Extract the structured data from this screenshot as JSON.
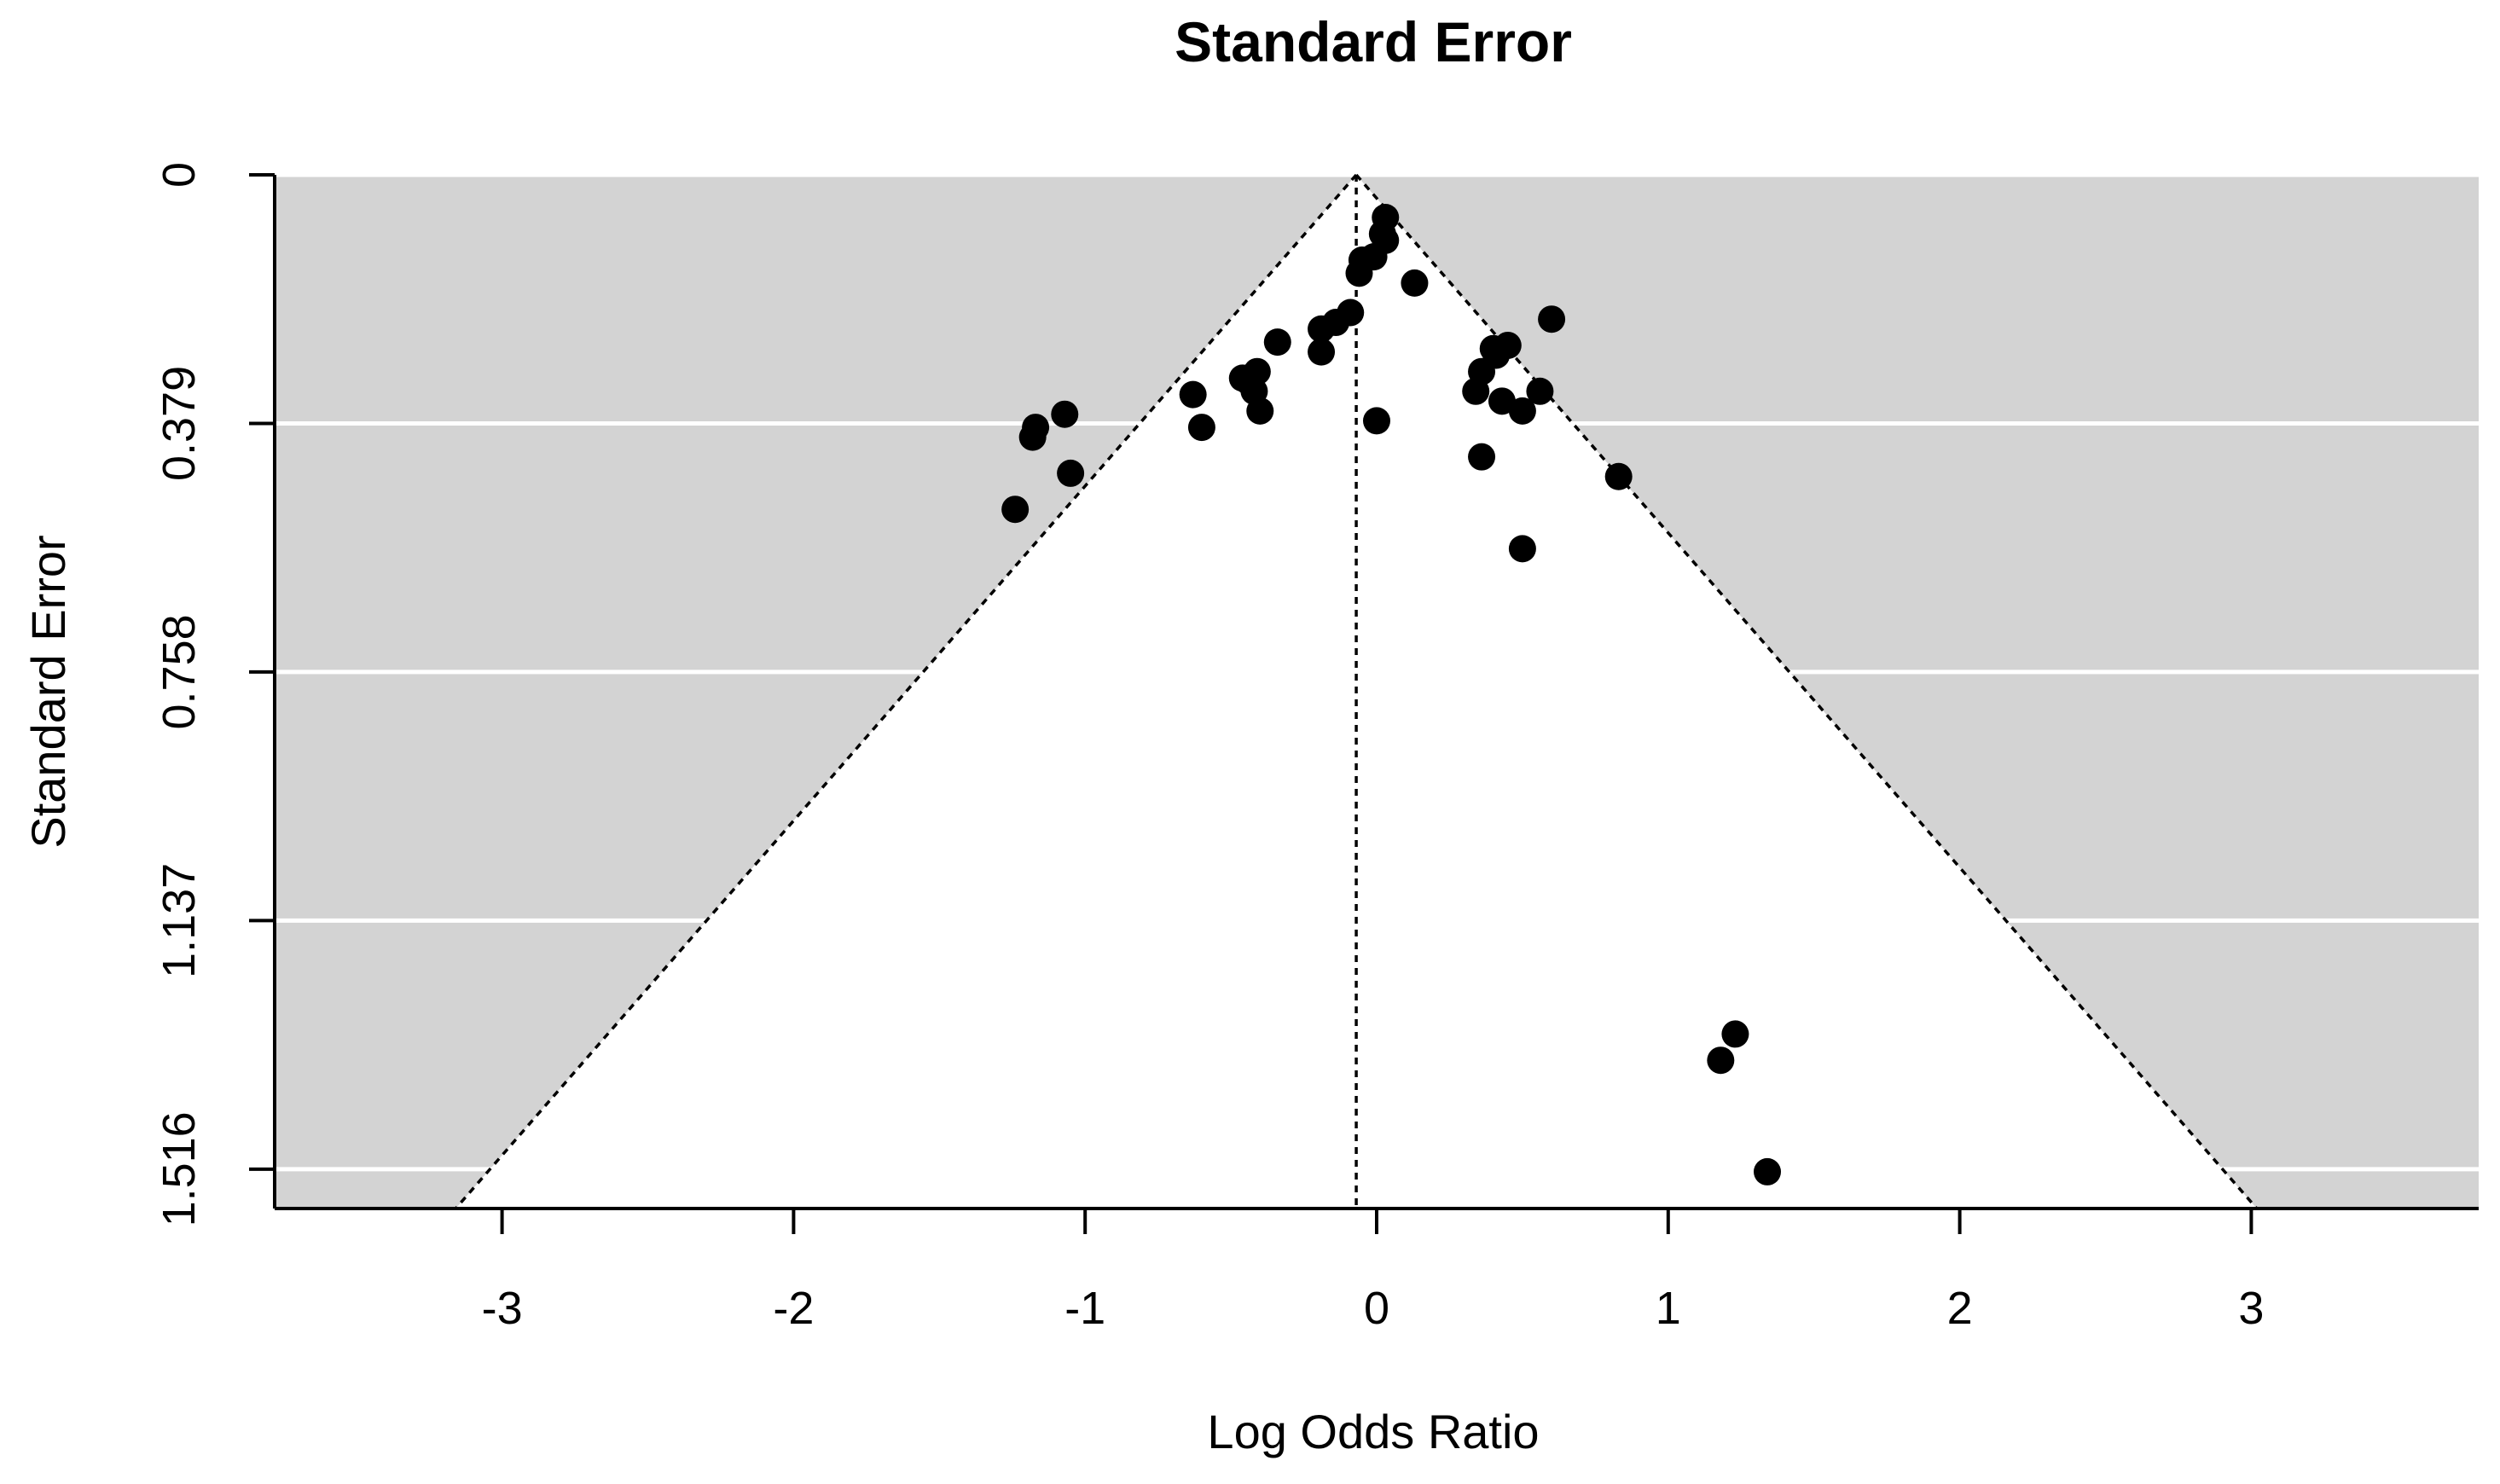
{
  "chart_data": {
    "type": "scatter",
    "title": "Standard Error",
    "xlabel": "Log Odds Ratio",
    "ylabel": "Standard Error",
    "xlim": [
      -3.78,
      3.78
    ],
    "ylim": [
      1.576,
      0
    ],
    "y_reversed": true,
    "x_ticks": [
      "-3",
      "-2",
      "-1",
      "0",
      "1",
      "2",
      "3"
    ],
    "y_ticks": [
      "0",
      "0.379",
      "0.758",
      "1.137",
      "1.516"
    ],
    "background_color": "#d3d3d3",
    "funnel_color": "#ffffff",
    "grid": true,
    "grid_color": "#ffffff",
    "point_color": "#000000",
    "funnel": {
      "center": -0.07,
      "z": 1.96
    },
    "points": [
      {
        "x": 0.03,
        "y": 0.065
      },
      {
        "x": 0.02,
        "y": 0.09
      },
      {
        "x": 0.03,
        "y": 0.1
      },
      {
        "x": -0.01,
        "y": 0.125
      },
      {
        "x": -0.05,
        "y": 0.13
      },
      {
        "x": -0.06,
        "y": 0.15
      },
      {
        "x": 0.13,
        "y": 0.165
      },
      {
        "x": 0.6,
        "y": 0.22
      },
      {
        "x": -0.09,
        "y": 0.21
      },
      {
        "x": -0.14,
        "y": 0.225
      },
      {
        "x": -0.19,
        "y": 0.235
      },
      {
        "x": -0.34,
        "y": 0.255
      },
      {
        "x": -0.19,
        "y": 0.27
      },
      {
        "x": 0.45,
        "y": 0.26
      },
      {
        "x": 0.4,
        "y": 0.265
      },
      {
        "x": 0.41,
        "y": 0.275
      },
      {
        "x": 0.36,
        "y": 0.3
      },
      {
        "x": -0.41,
        "y": 0.3
      },
      {
        "x": -0.46,
        "y": 0.31
      },
      {
        "x": -0.44,
        "y": 0.315
      },
      {
        "x": 0.34,
        "y": 0.33
      },
      {
        "x": -0.63,
        "y": 0.335
      },
      {
        "x": -0.42,
        "y": 0.33
      },
      {
        "x": 0.56,
        "y": 0.33
      },
      {
        "x": 0.43,
        "y": 0.345
      },
      {
        "x": 0.5,
        "y": 0.36
      },
      {
        "x": -0.4,
        "y": 0.36
      },
      {
        "x": -1.07,
        "y": 0.365
      },
      {
        "x": 0.0,
        "y": 0.375
      },
      {
        "x": -1.17,
        "y": 0.385
      },
      {
        "x": -1.18,
        "y": 0.4
      },
      {
        "x": -0.6,
        "y": 0.385
      },
      {
        "x": 0.36,
        "y": 0.43
      },
      {
        "x": -1.05,
        "y": 0.455
      },
      {
        "x": 0.83,
        "y": 0.46
      },
      {
        "x": -1.24,
        "y": 0.51
      },
      {
        "x": 0.5,
        "y": 0.57
      },
      {
        "x": 1.23,
        "y": 1.31
      },
      {
        "x": 1.18,
        "y": 1.35
      },
      {
        "x": 1.34,
        "y": 1.52
      }
    ]
  }
}
